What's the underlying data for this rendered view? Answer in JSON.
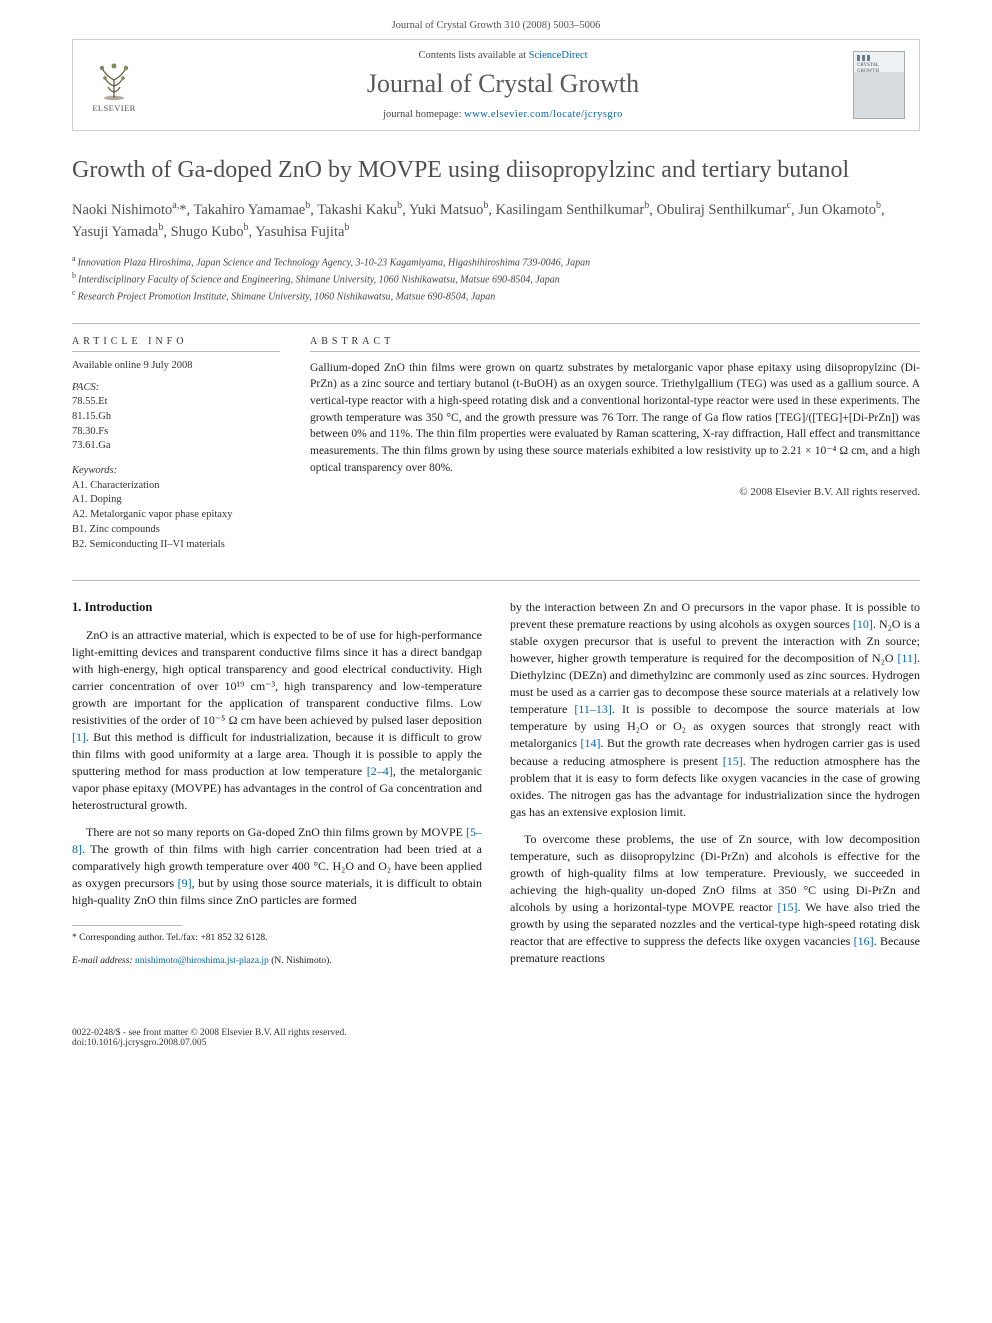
{
  "header": {
    "running": "Journal of Crystal Growth 310 (2008) 5003–5006"
  },
  "banner": {
    "contents_prefix": "Contents lists available at ",
    "contents_link": "ScienceDirect",
    "journal_name": "Journal of Crystal Growth",
    "homepage_prefix": "journal homepage: ",
    "homepage_url": "www.elsevier.com/locate/jcrysgro",
    "elsevier_label": "ELSEVIER",
    "cover_title": "CRYSTAL GROWTH"
  },
  "title": "Growth of Ga-doped ZnO by MOVPE using diisopropylzinc and tertiary butanol",
  "authors_html": "Naoki Nishimoto<sup>a,</sup><span class='corr-star'>*</span>, Takahiro Yamamae<sup>b</sup>, Takashi Kaku<sup>b</sup>, Yuki Matsuo<sup>b</sup>, Kasilingam Senthilkumar<sup>b</sup>, Obuliraj Senthilkumar<sup>c</sup>, Jun Okamoto<sup>b</sup>, Yasuji Yamada<sup>b</sup>, Shugo Kubo<sup>b</sup>, Yasuhisa Fujita<sup>b</sup>",
  "affiliations": {
    "a": "Innovation Plaza Hiroshima, Japan Science and Technology Agency, 3-10-23 Kagamiyama, Higashihiroshima 739-0046, Japan",
    "b": "Interdisciplinary Faculty of Science and Engineering, Shimane University, 1060 Nishikawatsu, Matsue 690-8504, Japan",
    "c": "Research Project Promotion Institute, Shimane University, 1060 Nishikawatsu, Matsue 690-8504, Japan"
  },
  "article_info": {
    "heading": "ARTICLE INFO",
    "available": "Available online 9 July 2008",
    "pacs_label": "PACS:",
    "pacs": [
      "78.55.Et",
      "81.15.Gh",
      "78.30.Fs",
      "73.61.Ga"
    ],
    "keywords_label": "Keywords:",
    "keywords": [
      "A1. Characterization",
      "A1. Doping",
      "A2. Metalorganic vapor phase epitaxy",
      "B1. Zinc compounds",
      "B2. Semiconducting II–VI materials"
    ]
  },
  "abstract": {
    "heading": "ABSTRACT",
    "text": "Gallium-doped ZnO thin films were grown on quartz substrates by metalorganic vapor phase epitaxy using diisopropylzinc (Di-PrZn) as a zinc source and tertiary butanol (t-BuOH) as an oxygen source. Triethylgallium (TEG) was used as a gallium source. A vertical-type reactor with a high-speed rotating disk and a conventional horizontal-type reactor were used in these experiments. The growth temperature was 350 °C, and the growth pressure was 76 Torr. The range of Ga flow ratios [TEG]/([TEG]+[Di-PrZn]) was between 0% and 11%. The thin film properties were evaluated by Raman scattering, X-ray diffraction, Hall effect and transmittance measurements. The thin films grown by using these source materials exhibited a low resistivity up to 2.21 × 10⁻⁴ Ω cm, and a high optical transparency over 80%.",
    "copyright": "© 2008 Elsevier B.V. All rights reserved."
  },
  "body": {
    "h_intro": "1.  Introduction",
    "p1": "ZnO is an attractive material, which is expected to be of use for high-performance light-emitting devices and transparent conductive films since it has a direct bandgap with high-energy, high optical transparency and good electrical conductivity. High carrier concentration of over 10¹⁹ cm⁻³, high transparency and low-temperature growth are important for the application of transparent conductive films. Low resistivities of the order of 10⁻⁵ Ω cm have been achieved by pulsed laser deposition [1]. But this method is difficult for industrialization, because it is difficult to grow thin films with good uniformity at a large area. Though it is possible to apply the sputtering method for mass production at low temperature [2–4], the metalorganic vapor phase epitaxy (MOVPE) has advantages in the control of Ga concentration and heterostructural growth.",
    "p2": "There are not so many reports on Ga-doped ZnO thin films grown by MOVPE [5–8]. The growth of thin films with high carrier concentration had been tried at a comparatively high growth temperature over 400 °C. H₂O and O₂ have been applied as oxygen precursors [9], but by using those source materials, it is difficult to obtain high-quality ZnO thin films since ZnO particles are formed",
    "p3": "by the interaction between Zn and O precursors in the vapor phase. It is possible to prevent these premature reactions by using alcohols as oxygen sources [10]. N₂O is a stable oxygen precursor that is useful to prevent the interaction with Zn source; however, higher growth temperature is required for the decomposition of N₂O [11]. Diethylzinc (DEZn) and dimethylzinc are commonly used as zinc sources. Hydrogen must be used as a carrier gas to decompose these source materials at a relatively low temperature [11–13]. It is possible to decompose the source materials at low temperature by using H₂O or O₂ as oxygen sources that strongly react with metalorganics [14]. But the growth rate decreases when hydrogen carrier gas is used because a reducing atmosphere is present [15]. The reduction atmosphere has the problem that it is easy to form defects like oxygen vacancies in the case of growing oxides. The nitrogen gas has the advantage for industrialization since the hydrogen gas has an extensive explosion limit.",
    "p4": "To overcome these problems, the use of Zn source, with low decomposition temperature, such as diisopropylzinc (Di-PrZn) and alcohols is effective for the growth of high-quality films at low temperature. Previously, we succeeded in achieving the high-quality un-doped ZnO films at 350 °C using Di-PrZn and alcohols by using a horizontal-type MOVPE reactor [15]. We have also tried the growth by using the separated nozzles and the vertical-type high-speed rotating disk reactor that are effective to suppress the defects like oxygen vacancies [16]. Because premature reactions"
  },
  "footnote": {
    "corr": "* Corresponding author. Tel./fax: +81 852 32 6128.",
    "email_label": "E-mail address:",
    "email": "nnishimoto@hiroshima.jst-plaza.jp",
    "email_who": "(N. Nishimoto)."
  },
  "footer": {
    "left_line1": "0022-0248/$ - see front matter © 2008 Elsevier B.V. All rights reserved.",
    "left_line2": "doi:10.1016/j.jcrysgro.2008.07.005"
  },
  "colors": {
    "link": "#0066aa",
    "rule": "#bbbbbb",
    "heading_gray": "#505050"
  }
}
